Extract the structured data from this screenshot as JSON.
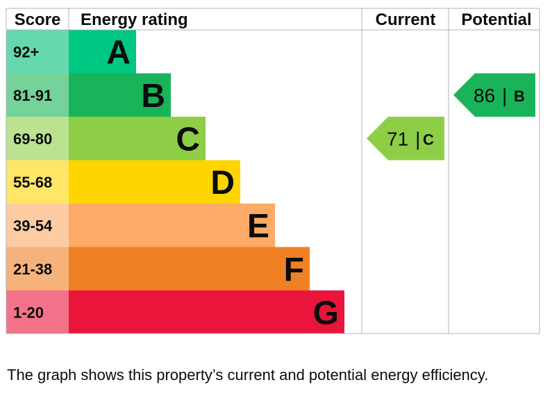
{
  "chart_data": {
    "type": "bar",
    "headers": {
      "score": "Score",
      "rating": "Energy rating",
      "current": "Current",
      "potential": "Potential"
    },
    "bands": [
      {
        "letter": "A",
        "range": "92+",
        "color": "#00c781",
        "score_bg": "#66d8ae"
      },
      {
        "letter": "B",
        "range": "81-91",
        "color": "#19b459",
        "score_bg": "#75d29b"
      },
      {
        "letter": "C",
        "range": "69-80",
        "color": "#8dce46",
        "score_bg": "#bbe290"
      },
      {
        "letter": "D",
        "range": "55-68",
        "color": "#ffd500",
        "score_bg": "#ffe666"
      },
      {
        "letter": "E",
        "range": "39-54",
        "color": "#fcaa65",
        "score_bg": "#fdcca3"
      },
      {
        "letter": "F",
        "range": "21-38",
        "color": "#ef8023",
        "score_bg": "#f5b37b"
      },
      {
        "letter": "G",
        "range": "1-20",
        "color": "#e9153b",
        "score_bg": "#f27389"
      }
    ],
    "current": {
      "value": 71,
      "band": "C",
      "separator": "|"
    },
    "potential": {
      "value": 86,
      "band": "B",
      "separator": "|"
    }
  },
  "caption": "The graph shows this property’s current and potential energy efficiency."
}
